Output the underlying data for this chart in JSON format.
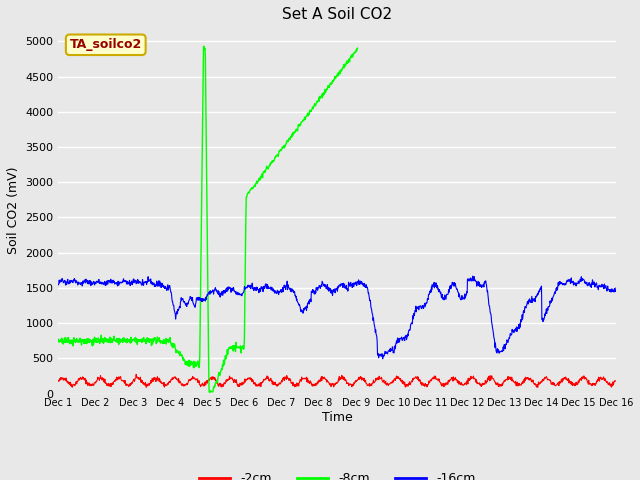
{
  "title": "Set A Soil CO2",
  "ylabel": "Soil CO2 (mV)",
  "xlabel": "Time",
  "xlim": [
    0,
    15
  ],
  "ylim": [
    0,
    5200
  ],
  "yticks": [
    0,
    500,
    1000,
    1500,
    2000,
    2500,
    3000,
    3500,
    4000,
    4500,
    5000
  ],
  "xtick_labels": [
    "Dec 1",
    "Dec 2",
    "Dec 3",
    "Dec 4",
    "Dec 5",
    "Dec 6",
    "Dec 7",
    "Dec 8",
    "Dec 9",
    "Dec 10",
    "Dec 11",
    "Dec 12",
    "Dec 13",
    "Dec 14",
    "Dec 15",
    "Dec 16"
  ],
  "background_color": "#e8e8e8",
  "plot_bg_color": "#e8e8e8",
  "grid_color": "#ffffff",
  "legend_label": "TA_soilco2",
  "legend_bg": "#ffffcc",
  "legend_border": "#ccaa00",
  "series": {
    "2cm": {
      "color": "#ff0000",
      "label": "-2cm"
    },
    "8cm": {
      "color": "#00ff00",
      "label": "-8cm"
    },
    "16cm": {
      "color": "#0000ff",
      "label": "-16cm"
    }
  }
}
